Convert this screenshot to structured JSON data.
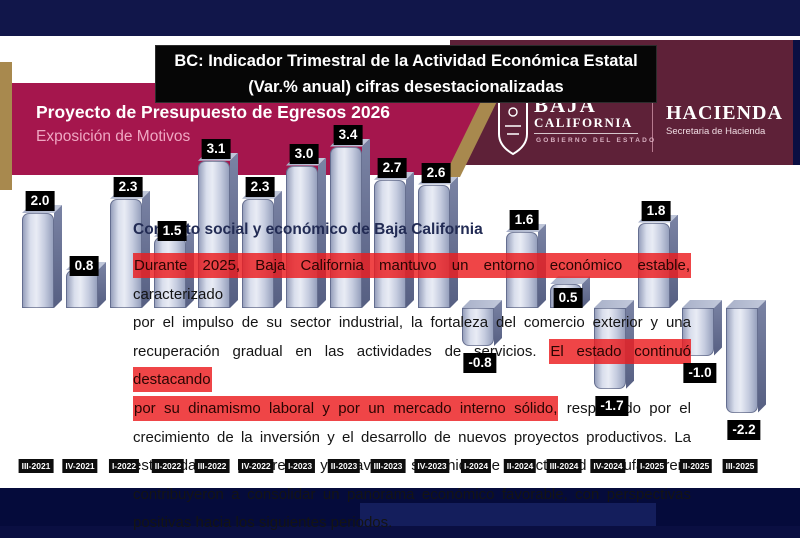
{
  "title_box": {
    "line1": "BC: Indicador Trimestral de la Actividad Económica Estatal",
    "line2": "(Var.% anual) cifras desestacionalizadas"
  },
  "banner": {
    "title": "Proyecto de Presupuesto de Egresos 2026",
    "subtitle": "Exposición de Motivos",
    "colors": {
      "crimson": "#A5164D",
      "maroon": "#5E2138",
      "gold": "#A8894E",
      "frame_navy": "#0A0F42"
    }
  },
  "logo": {
    "state_top": "BAJA",
    "state_bottom": "CALIFORNIA",
    "state_caption": "GOBIERNO DEL ESTADO",
    "ministry": "HACIENDA",
    "ministry_caption": "Secretaria de Hacienda"
  },
  "main": {
    "heading": "Contexto social y económico de Baja California",
    "highlight_color": "#ED1C24",
    "paragraph_lines": [
      {
        "segments": [
          {
            "text": "Durante 2025, Baja California mantuvo un entorno económico estable,",
            "hl": true
          },
          {
            "text": " caracterizado",
            "hl": false
          }
        ]
      },
      {
        "segments": [
          {
            "text": "por el impulso de su sector industrial, la fortaleza del comercio exterior y una",
            "hl": false
          }
        ]
      },
      {
        "segments": [
          {
            "text": "recuperación gradual en las actividades de servicios. ",
            "hl": false
          },
          {
            "text": "El estado continuó destacando",
            "hl": true
          }
        ]
      },
      {
        "segments": [
          {
            "text": "por su dinamismo laboral y por un mercado interno sólido,",
            "hl": true
          },
          {
            "text": " respaldado por el",
            "hl": false
          }
        ]
      },
      {
        "segments": [
          {
            "text": "crecimiento de la inversión y el desarrollo de nuevos proyectos productivos. La",
            "hl": false
          }
        ]
      },
      {
        "segments": [
          {
            "text": "estabilidad en los precios y el avance sostenido de la actividad manufacturera",
            "hl": false
          }
        ]
      },
      {
        "segments": [
          {
            "text": "contribuyeron a consolidar un panorama económico favorable, con perspectivas",
            "hl": false
          }
        ]
      },
      {
        "segments": [
          {
            "text": "positivas hacia los siguientes periodos.",
            "hl": false
          }
        ]
      }
    ]
  },
  "chart_data": {
    "type": "bar",
    "title": "BC: Indicador Trimestral de la Actividad Económica Estatal (Var.% anual) cifras desestacionalizadas",
    "xlabel": "",
    "ylabel": "Var. % anual",
    "categories": [
      "III-2021",
      "IV-2021",
      "I-2022",
      "II-2022",
      "III-2022",
      "IV-2022",
      "I-2023",
      "II-2023",
      "III-2023",
      "IV-2023",
      "I-2024",
      "II-2024",
      "III-2024",
      "IV-2024",
      "I-2025",
      "II-2025",
      "III-2025"
    ],
    "values": [
      2.0,
      0.8,
      2.3,
      1.5,
      3.1,
      2.3,
      3.0,
      3.4,
      2.7,
      2.6,
      -0.8,
      1.6,
      0.5,
      -1.7,
      1.8,
      -1.0,
      -2.2
    ],
    "ylim": [
      -2.6,
      3.8
    ],
    "grid": false,
    "legend": false,
    "label_dy": {
      "1": 8,
      "3": 6,
      "12": 26
    },
    "colors": {
      "bar_light": "#E9ECF5",
      "bar_dark": "#565F82",
      "label_bg": "#000000",
      "label_fg": "#FFFFFF"
    }
  }
}
